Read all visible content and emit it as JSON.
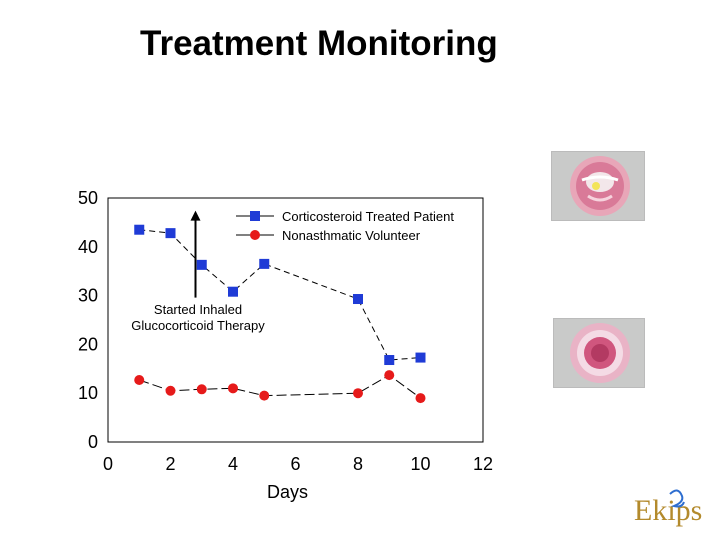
{
  "slide": {
    "title": "Treatment Monitoring"
  },
  "logo": {
    "text": "Ekips"
  },
  "colors": {
    "treated": "#1f3bd6",
    "volunteer": "#e61a1a",
    "logo": "#b38a2c"
  },
  "chart_data": {
    "type": "line",
    "title": "",
    "xlabel": "Days",
    "ylabel": "",
    "xlim": [
      0,
      12
    ],
    "ylim": [
      0,
      50
    ],
    "x_ticks": [
      0,
      2,
      4,
      6,
      8,
      10,
      12
    ],
    "y_ticks": [
      0,
      10,
      20,
      30,
      40,
      50
    ],
    "grid": false,
    "legend": "top-right",
    "series": [
      {
        "name": "Corticosteroid Treated Patient",
        "marker": "square",
        "color": "#1f3bd6",
        "x": [
          1,
          2,
          3,
          4,
          5,
          8,
          9,
          10
        ],
        "y": [
          43.5,
          42.8,
          36.3,
          30.8,
          36.5,
          29.3,
          16.8,
          17.3
        ]
      },
      {
        "name": "Nonasthmatic Volunteer",
        "marker": "circle",
        "color": "#e61a1a",
        "x": [
          1,
          2,
          3,
          4,
          5,
          8,
          9,
          10
        ],
        "y": [
          12.7,
          10.5,
          10.8,
          11.0,
          9.5,
          10.0,
          13.7,
          9.0
        ]
      }
    ],
    "annotations": [
      {
        "text_lines": [
          "Started Inhaled",
          "Glucocorticoid Therapy"
        ],
        "arrow_x": 2.8,
        "arrow_from_y": 30,
        "arrow_to_y": 47
      }
    ]
  }
}
